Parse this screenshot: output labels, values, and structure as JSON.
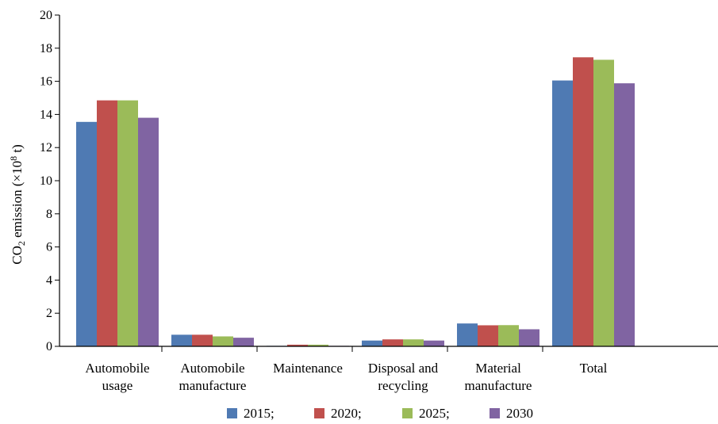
{
  "chart_data": {
    "type": "bar",
    "categories": [
      [
        "Automobile",
        "usage"
      ],
      [
        "Automobile",
        "manufacture"
      ],
      [
        "Maintenance"
      ],
      [
        "Disposal and",
        "recycling"
      ],
      [
        "Material",
        "manufacture"
      ],
      [
        "Total"
      ]
    ],
    "series": [
      {
        "name": "2015;",
        "color": "#4f7ab3",
        "values": [
          13.55,
          0.7,
          0.03,
          0.35,
          1.38,
          16.05
        ]
      },
      {
        "name": "2020;",
        "color": "#c0504d",
        "values": [
          14.85,
          0.7,
          0.1,
          0.42,
          1.27,
          17.45
        ]
      },
      {
        "name": "2025;",
        "color": "#9bbb59",
        "values": [
          14.85,
          0.6,
          0.1,
          0.42,
          1.28,
          17.3
        ]
      },
      {
        "name": "2030",
        "color": "#8064a2",
        "values": [
          13.8,
          0.52,
          0.03,
          0.35,
          1.03,
          15.88
        ]
      }
    ],
    "ylabel": {
      "pre": "CO",
      "sub": "2",
      "mid": " emission (×10",
      "sup": "8",
      "post": " t)"
    },
    "ylim": [
      0,
      20
    ],
    "yticks": [
      "0",
      "2",
      "4",
      "6",
      "8",
      "10",
      "12",
      "14",
      "16",
      "18",
      "20"
    ],
    "grid": false,
    "legend_position": "bottom"
  }
}
